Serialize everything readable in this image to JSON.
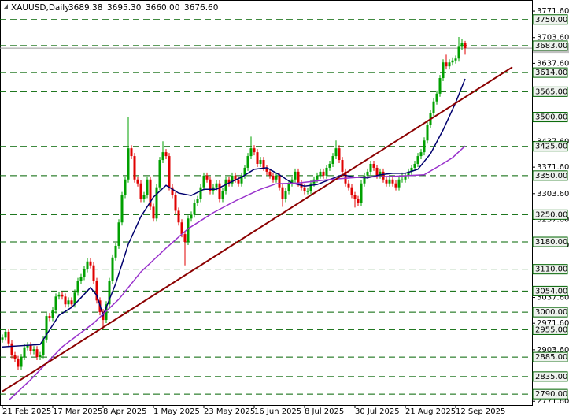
{
  "chart_data": {
    "type": "candlestick",
    "symbol": "XAUUSD,Daily",
    "header_ohlc": [
      "3689.38",
      "3695.30",
      "3660.00",
      "3676.60"
    ],
    "xlim": [
      -0.75,
      168
    ],
    "ylim": [
      2762,
      3800
    ],
    "xticks": [
      {
        "value": 0,
        "label": "21 Feb 2025"
      },
      {
        "value": 16,
        "label": "17 Mar 2025"
      },
      {
        "value": 32,
        "label": "8 Apr 2025"
      },
      {
        "value": 48,
        "label": "1 May 2025"
      },
      {
        "value": 64,
        "label": "23 May 2025"
      },
      {
        "value": 80,
        "label": "16 Jun 2025"
      },
      {
        "value": 96,
        "label": "8 Jul 2025"
      },
      {
        "value": 112,
        "label": "30 Jul 2025"
      },
      {
        "value": 128,
        "label": "21 Aug 2025"
      },
      {
        "value": 144,
        "label": "12 Sep 2025"
      }
    ],
    "yticks": [
      {
        "value": 3771.6,
        "label": "3771.60"
      },
      {
        "value": 3703.6,
        "label": "3703.60"
      },
      {
        "value": 3637.6,
        "label": "3637.60"
      },
      {
        "value": 3437.6,
        "label": "3437.60"
      },
      {
        "value": 3371.6,
        "label": "3371.60"
      },
      {
        "value": 3303.6,
        "label": "3303.60"
      },
      {
        "value": 3237.6,
        "label": "3237.60"
      },
      {
        "value": 3171.6,
        "label": "3171.60"
      },
      {
        "value": 3037.6,
        "label": "3037.60"
      },
      {
        "value": 2971.6,
        "label": "2971.60"
      },
      {
        "value": 2903.6,
        "label": "2903.60"
      },
      {
        "value": 2771.6,
        "label": "2771.60"
      }
    ],
    "price_line": {
      "value": 3676.6,
      "label": "3676.60"
    },
    "levels": [
      {
        "value": 3750,
        "label": "3750.00"
      },
      {
        "value": 3683,
        "label": "3683.00"
      },
      {
        "value": 3614,
        "label": "3614.00"
      },
      {
        "value": 3565,
        "label": "3565.00"
      },
      {
        "value": 3500,
        "label": "3500.00"
      },
      {
        "value": 3425,
        "label": "3425.00"
      },
      {
        "value": 3350,
        "label": "3350.00"
      },
      {
        "value": 3250,
        "label": "3250.00"
      },
      {
        "value": 3180,
        "label": "3180.00"
      },
      {
        "value": 3110,
        "label": "3110.00"
      },
      {
        "value": 3054,
        "label": "3054.00"
      },
      {
        "value": 3000,
        "label": "3000.00"
      },
      {
        "value": 2955,
        "label": "2955.00"
      },
      {
        "value": 2885,
        "label": "2885.00"
      },
      {
        "value": 2835,
        "label": "2835.00"
      },
      {
        "value": 2790,
        "label": "2790.00"
      }
    ],
    "level_color": "#006400",
    "up_color": "#00a000",
    "down_color": "#e00000",
    "candles": [
      [
        2930,
        2943,
        2922,
        2935
      ],
      [
        2935,
        2958,
        2927,
        2950
      ],
      [
        2950,
        2958,
        2912,
        2920
      ],
      [
        2920,
        2928,
        2882,
        2890
      ],
      [
        2890,
        2898,
        2872,
        2880
      ],
      [
        2880,
        2888,
        2852,
        2860
      ],
      [
        2860,
        2893,
        2852,
        2885
      ],
      [
        2885,
        2918,
        2877,
        2910
      ],
      [
        2910,
        2923,
        2902,
        2915
      ],
      [
        2915,
        2923,
        2892,
        2900
      ],
      [
        2900,
        2913,
        2892,
        2905
      ],
      [
        2905,
        2913,
        2877,
        2885
      ],
      [
        2885,
        2898,
        2877,
        2890
      ],
      [
        2890,
        2938,
        2882,
        2930
      ],
      [
        2930,
        2998,
        2922,
        2990
      ],
      [
        2990,
        2998,
        2977,
        2985
      ],
      [
        2985,
        3013,
        2977,
        3005
      ],
      [
        3005,
        3048,
        2997,
        3040
      ],
      [
        3040,
        3053,
        3032,
        3045
      ],
      [
        3045,
        3053,
        3032,
        3040
      ],
      [
        3040,
        3048,
        3012,
        3020
      ],
      [
        3020,
        3038,
        3012,
        3030
      ],
      [
        3030,
        3038,
        3012,
        3020
      ],
      [
        3020,
        3058,
        3012,
        3050
      ],
      [
        3050,
        3088,
        3042,
        3080
      ],
      [
        3080,
        3098,
        3072,
        3090
      ],
      [
        3090,
        3118,
        3082,
        3110
      ],
      [
        3110,
        3138,
        3102,
        3130
      ],
      [
        3130,
        3138,
        3112,
        3120
      ],
      [
        3120,
        3128,
        3072,
        3080
      ],
      [
        3080,
        3088,
        3022,
        3030
      ],
      [
        3030,
        3038,
        2992,
        3000
      ],
      [
        3000,
        3008,
        2958,
        2980
      ],
      [
        2980,
        3028,
        2972,
        3020
      ],
      [
        3020,
        3088,
        3012,
        3080
      ],
      [
        3080,
        3148,
        3072,
        3140
      ],
      [
        3140,
        3178,
        3132,
        3170
      ],
      [
        3170,
        3238,
        3162,
        3230
      ],
      [
        3230,
        3308,
        3222,
        3300
      ],
      [
        3300,
        3348,
        3292,
        3340
      ],
      [
        3340,
        3500,
        3332,
        3420
      ],
      [
        3420,
        3428,
        3392,
        3400
      ],
      [
        3400,
        3408,
        3332,
        3340
      ],
      [
        3340,
        3348,
        3322,
        3330
      ],
      [
        3330,
        3338,
        3282,
        3290
      ],
      [
        3290,
        3308,
        3282,
        3300
      ],
      [
        3300,
        3348,
        3292,
        3340
      ],
      [
        3340,
        3348,
        3262,
        3270
      ],
      [
        3270,
        3278,
        3232,
        3240
      ],
      [
        3240,
        3328,
        3232,
        3320
      ],
      [
        3320,
        3398,
        3312,
        3390
      ],
      [
        3390,
        3438,
        3382,
        3410
      ],
      [
        3410,
        3418,
        3392,
        3400
      ],
      [
        3400,
        3408,
        3312,
        3320
      ],
      [
        3320,
        3328,
        3292,
        3300
      ],
      [
        3300,
        3308,
        3252,
        3260
      ],
      [
        3260,
        3268,
        3222,
        3230
      ],
      [
        3230,
        3238,
        3192,
        3200
      ],
      [
        3200,
        3208,
        3120,
        3180
      ],
      [
        3180,
        3248,
        3172,
        3240
      ],
      [
        3240,
        3258,
        3232,
        3250
      ],
      [
        3250,
        3288,
        3242,
        3280
      ],
      [
        3280,
        3298,
        3272,
        3290
      ],
      [
        3290,
        3328,
        3282,
        3320
      ],
      [
        3320,
        3358,
        3312,
        3350
      ],
      [
        3350,
        3358,
        3332,
        3340
      ],
      [
        3340,
        3348,
        3302,
        3310
      ],
      [
        3310,
        3328,
        3302,
        3320
      ],
      [
        3320,
        3338,
        3312,
        3330
      ],
      [
        3330,
        3338,
        3282,
        3290
      ],
      [
        3290,
        3318,
        3282,
        3310
      ],
      [
        3310,
        3348,
        3302,
        3340
      ],
      [
        3340,
        3348,
        3322,
        3330
      ],
      [
        3330,
        3358,
        3322,
        3350
      ],
      [
        3350,
        3358,
        3332,
        3340
      ],
      [
        3340,
        3348,
        3322,
        3330
      ],
      [
        3330,
        3358,
        3322,
        3350
      ],
      [
        3350,
        3378,
        3342,
        3370
      ],
      [
        3370,
        3408,
        3362,
        3400
      ],
      [
        3400,
        3450,
        3392,
        3420
      ],
      [
        3420,
        3428,
        3402,
        3410
      ],
      [
        3410,
        3418,
        3372,
        3380
      ],
      [
        3380,
        3398,
        3372,
        3390
      ],
      [
        3390,
        3398,
        3362,
        3370
      ],
      [
        3370,
        3378,
        3352,
        3360
      ],
      [
        3360,
        3368,
        3342,
        3350
      ],
      [
        3350,
        3358,
        3332,
        3340
      ],
      [
        3340,
        3358,
        3332,
        3350
      ],
      [
        3350,
        3358,
        3312,
        3320
      ],
      [
        3320,
        3328,
        3270,
        3290
      ],
      [
        3290,
        3318,
        3282,
        3310
      ],
      [
        3310,
        3338,
        3302,
        3330
      ],
      [
        3330,
        3348,
        3322,
        3340
      ],
      [
        3340,
        3368,
        3332,
        3360
      ],
      [
        3360,
        3368,
        3322,
        3330
      ],
      [
        3330,
        3338,
        3312,
        3320
      ],
      [
        3320,
        3328,
        3302,
        3310
      ],
      [
        3310,
        3318,
        3302,
        3310
      ],
      [
        3310,
        3338,
        3302,
        3330
      ],
      [
        3330,
        3348,
        3322,
        3340
      ],
      [
        3340,
        3358,
        3332,
        3350
      ],
      [
        3350,
        3368,
        3342,
        3360
      ],
      [
        3360,
        3368,
        3342,
        3350
      ],
      [
        3350,
        3378,
        3342,
        3370
      ],
      [
        3370,
        3388,
        3362,
        3380
      ],
      [
        3380,
        3408,
        3372,
        3400
      ],
      [
        3400,
        3440,
        3392,
        3420
      ],
      [
        3420,
        3428,
        3382,
        3390
      ],
      [
        3390,
        3398,
        3352,
        3360
      ],
      [
        3360,
        3368,
        3322,
        3330
      ],
      [
        3330,
        3338,
        3312,
        3320
      ],
      [
        3320,
        3328,
        3292,
        3300
      ],
      [
        3300,
        3308,
        3268,
        3290
      ],
      [
        3290,
        3298,
        3272,
        3280
      ],
      [
        3280,
        3338,
        3272,
        3330
      ],
      [
        3330,
        3358,
        3322,
        3350
      ],
      [
        3350,
        3368,
        3342,
        3360
      ],
      [
        3360,
        3388,
        3352,
        3380
      ],
      [
        3380,
        3388,
        3362,
        3370
      ],
      [
        3370,
        3378,
        3342,
        3350
      ],
      [
        3350,
        3368,
        3342,
        3360
      ],
      [
        3360,
        3368,
        3332,
        3340
      ],
      [
        3340,
        3348,
        3322,
        3330
      ],
      [
        3330,
        3348,
        3322,
        3340
      ],
      [
        3340,
        3348,
        3322,
        3330
      ],
      [
        3330,
        3338,
        3312,
        3320
      ],
      [
        3320,
        3348,
        3312,
        3340
      ],
      [
        3340,
        3358,
        3332,
        3340
      ],
      [
        3340,
        3358,
        3332,
        3350
      ],
      [
        3350,
        3368,
        3342,
        3360
      ],
      [
        3360,
        3378,
        3352,
        3370
      ],
      [
        3370,
        3388,
        3362,
        3380
      ],
      [
        3380,
        3408,
        3372,
        3400
      ],
      [
        3400,
        3418,
        3392,
        3410
      ],
      [
        3410,
        3448,
        3402,
        3440
      ],
      [
        3440,
        3488,
        3432,
        3480
      ],
      [
        3480,
        3518,
        3472,
        3510
      ],
      [
        3510,
        3548,
        3502,
        3540
      ],
      [
        3540,
        3568,
        3532,
        3560
      ],
      [
        3560,
        3608,
        3552,
        3600
      ],
      [
        3600,
        3648,
        3592,
        3640
      ],
      [
        3640,
        3660,
        3622,
        3630
      ],
      [
        3630,
        3648,
        3622,
        3640
      ],
      [
        3640,
        3653,
        3632,
        3645
      ],
      [
        3645,
        3658,
        3637,
        3650
      ],
      [
        3650,
        3705,
        3642,
        3680
      ],
      [
        3680,
        3700,
        3672,
        3690
      ],
      [
        3689.38,
        3695.3,
        3660,
        3676.6
      ]
    ],
    "series": [
      {
        "color": "#00006e",
        "x": [
          0,
          12,
          14,
          18,
          22,
          25,
          28,
          30,
          32,
          36,
          40,
          44,
          48,
          52,
          56,
          60,
          64,
          68,
          72,
          76,
          80,
          84,
          88,
          92,
          96,
          100,
          104,
          108,
          112,
          116,
          120,
          124,
          128,
          132,
          136,
          140,
          144,
          147
        ],
        "values": [
          2911,
          2917,
          2942,
          2992,
          3012,
          3037,
          3063,
          3043,
          2992,
          3073,
          3174,
          3245,
          3295,
          3325,
          3305,
          3299,
          3315,
          3315,
          3331,
          3346,
          3366,
          3370,
          3352,
          3331,
          3323,
          3327,
          3340,
          3352,
          3346,
          3344,
          3352,
          3356,
          3356,
          3366,
          3406,
          3467,
          3537,
          3598
        ]
      },
      {
        "color": "#9932cc",
        "x": [
          2,
          9,
          19,
          29,
          37,
          44,
          52,
          59,
          67,
          74,
          82,
          87,
          94,
          104,
          114,
          124,
          134,
          139,
          143,
          147
        ],
        "values": [
          2774,
          2827,
          2911,
          2972,
          3033,
          3103,
          3164,
          3214,
          3255,
          3285,
          3315,
          3329,
          3331,
          3340,
          3346,
          3348,
          3352,
          3376,
          3396,
          3426
        ]
      },
      {
        "color": "#8b0000",
        "x": [
          0,
          162
        ],
        "values": [
          2797,
          3628
        ]
      }
    ]
  }
}
